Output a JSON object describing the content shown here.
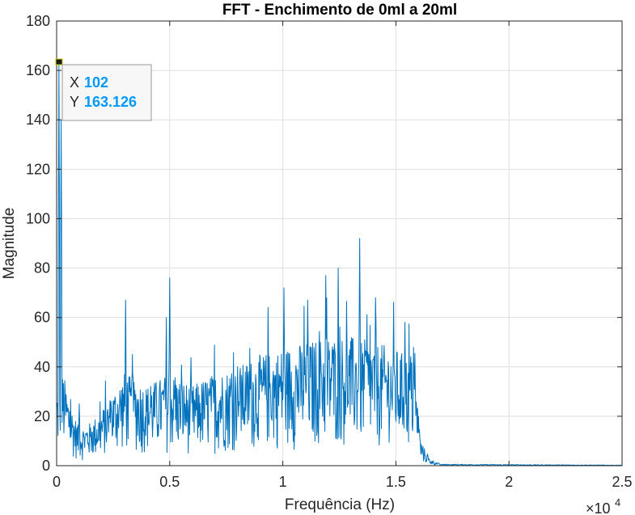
{
  "chart_data": {
    "type": "line",
    "title": "FFT - Enchimento de 0ml a 20ml",
    "xlabel": "Frequência (Hz)",
    "ylabel": "Magnitude",
    "xlim": [
      0,
      25000
    ],
    "ylim": [
      0,
      180
    ],
    "x_exponent_label": "×10",
    "x_exponent_power": "4",
    "xticks": [
      0,
      5000,
      10000,
      15000,
      20000,
      25000
    ],
    "xtick_labels": [
      "0",
      "0.5",
      "1",
      "1.5",
      "2",
      "2.5"
    ],
    "yticks": [
      0,
      20,
      40,
      60,
      80,
      100,
      120,
      140,
      160,
      180
    ],
    "ytick_labels": [
      "0",
      "20",
      "40",
      "60",
      "80",
      "100",
      "120",
      "140",
      "160",
      "180"
    ],
    "grid": true,
    "series": [
      {
        "color": "#0072BD",
        "peaks": [
          {
            "x": 102,
            "y": 163.126
          },
          {
            "x": 200,
            "y": 140
          },
          {
            "x": 1000,
            "y": 25
          },
          {
            "x": 2400,
            "y": 26
          },
          {
            "x": 3050,
            "y": 67
          },
          {
            "x": 3350,
            "y": 45
          },
          {
            "x": 5000,
            "y": 76
          },
          {
            "x": 4850,
            "y": 60
          },
          {
            "x": 8000,
            "y": 40
          },
          {
            "x": 9350,
            "y": 64
          },
          {
            "x": 10050,
            "y": 72
          },
          {
            "x": 11100,
            "y": 67
          },
          {
            "x": 11900,
            "y": 77
          },
          {
            "x": 12450,
            "y": 80
          },
          {
            "x": 13400,
            "y": 92
          },
          {
            "x": 14100,
            "y": 68
          },
          {
            "x": 15400,
            "y": 58
          },
          {
            "x": 15800,
            "y": 38
          },
          {
            "x": 16000,
            "y": 20
          }
        ],
        "envelope": [
          [
            0,
            25
          ],
          [
            300,
            30
          ],
          [
            600,
            20
          ],
          [
            1000,
            12
          ],
          [
            1500,
            14
          ],
          [
            2000,
            18
          ],
          [
            2500,
            24
          ],
          [
            3000,
            30
          ],
          [
            4000,
            26
          ],
          [
            5000,
            30
          ],
          [
            6000,
            26
          ],
          [
            7000,
            30
          ],
          [
            8000,
            32
          ],
          [
            9000,
            36
          ],
          [
            10000,
            38
          ],
          [
            11000,
            40
          ],
          [
            12000,
            42
          ],
          [
            13000,
            42
          ],
          [
            14000,
            40
          ],
          [
            15000,
            38
          ],
          [
            15800,
            34
          ],
          [
            16100,
            8
          ],
          [
            16500,
            2
          ],
          [
            17000,
            0.5
          ],
          [
            25000,
            0.2
          ]
        ]
      }
    ],
    "datatip": {
      "x_label": "X",
      "x_value": "102",
      "y_label": "Y",
      "y_value": "163.126"
    }
  },
  "colors": {
    "line": "#0072BD",
    "grid": "#dfdfdf",
    "axis": "#262626",
    "datatip_value": "#0099ff",
    "marker": "#1a1a1a"
  }
}
